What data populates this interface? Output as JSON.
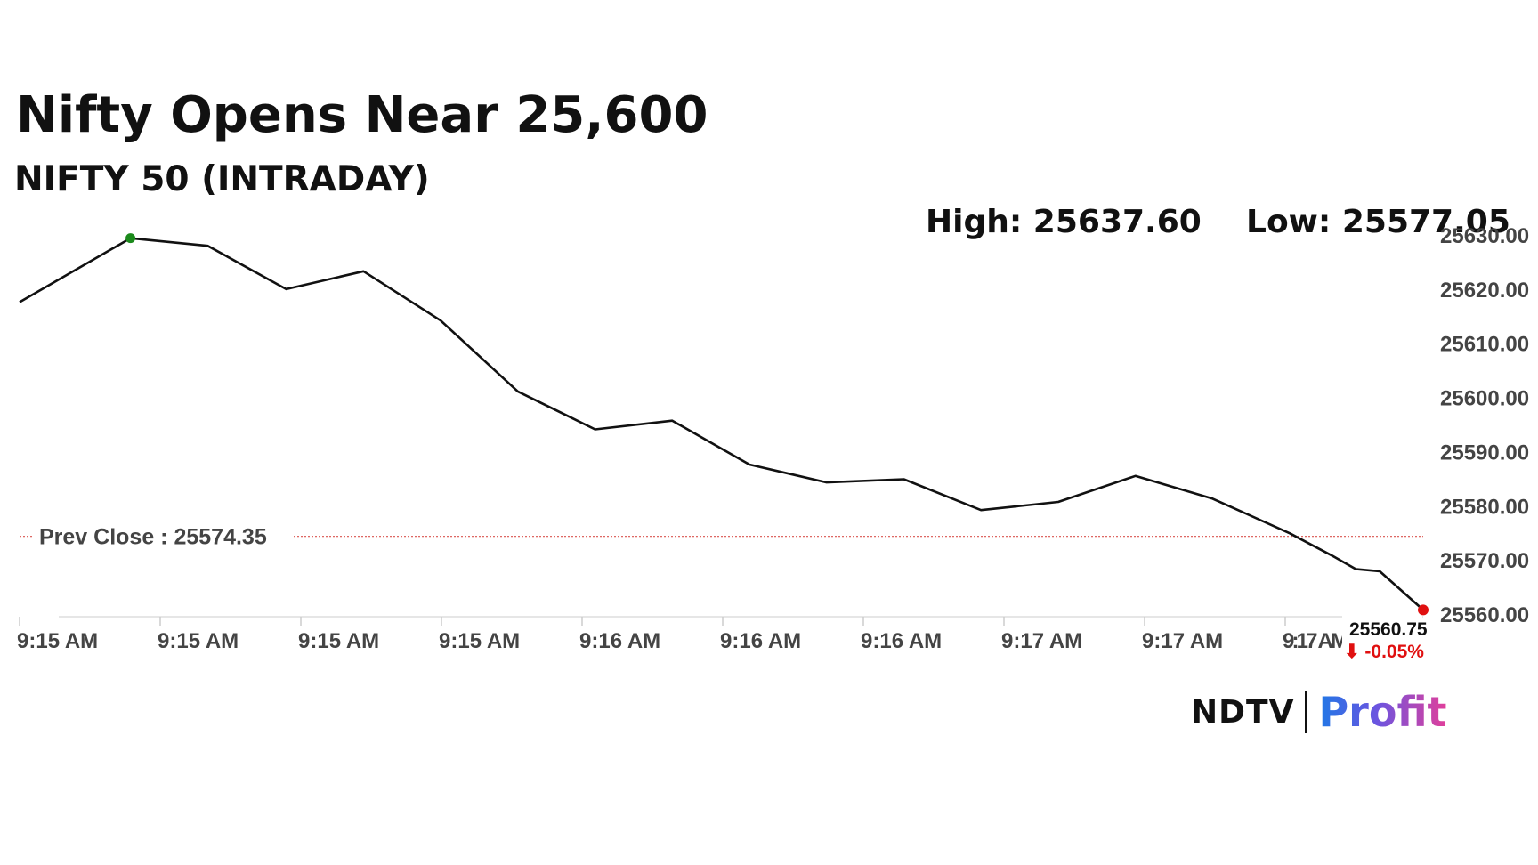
{
  "headline": "Nifty Opens Near 25,600",
  "subheading": "NIFTY 50 (INTRADAY)",
  "high_label": "High: 25637.60",
  "low_label": "Low: 25577.05",
  "brand": {
    "name_part1": "NDTV",
    "name_part2": "Profit"
  },
  "colors": {
    "line": "#111111",
    "high_marker": "#1b8a1b",
    "last_marker": "#e01010",
    "prev_close_line": "#d9534f",
    "change_text": "#e01010"
  },
  "chart_data": {
    "type": "line",
    "title": "NIFTY 50 (INTRADAY)",
    "y_ticks": [
      "25630.00",
      "25620.00",
      "25610.00",
      "25600.00",
      "25590.00",
      "25580.00",
      "25570.00",
      "25560.00"
    ],
    "x_ticks": [
      "9:15 AM",
      "9:15 AM",
      "9:15 AM",
      "9:15 AM",
      "9:16 AM",
      "9:16 AM",
      "9:16 AM",
      "9:17 AM",
      "9:17 AM",
      "9:17 AM"
    ],
    "ylim": [
      25560,
      25630
    ],
    "series": [
      {
        "points": [
          [
            0.0,
            25617.6
          ],
          [
            0.79,
            25629.4
          ],
          [
            1.34,
            25628.0
          ],
          [
            1.9,
            25620.0
          ],
          [
            2.45,
            25623.3
          ],
          [
            3.0,
            25614.2
          ],
          [
            3.55,
            25601.1
          ],
          [
            4.1,
            25594.1
          ],
          [
            4.65,
            25595.7
          ],
          [
            5.2,
            25587.6
          ],
          [
            5.75,
            25584.3
          ],
          [
            6.3,
            25584.9
          ],
          [
            6.85,
            25579.2
          ],
          [
            7.4,
            25580.7
          ],
          [
            7.95,
            25585.5
          ],
          [
            8.5,
            25581.3
          ],
          [
            9.05,
            25574.9
          ],
          [
            9.35,
            25570.8
          ],
          [
            9.52,
            25568.3
          ],
          [
            9.69,
            25567.9
          ],
          [
            10.0,
            25560.75
          ]
        ]
      }
    ],
    "high_point_index": 1,
    "prev_close": 25574.35,
    "prev_close_label": "Prev Close : 25574.35",
    "last_value": "25560.75",
    "change": "⬇ -0.05%",
    "grid": false
  }
}
